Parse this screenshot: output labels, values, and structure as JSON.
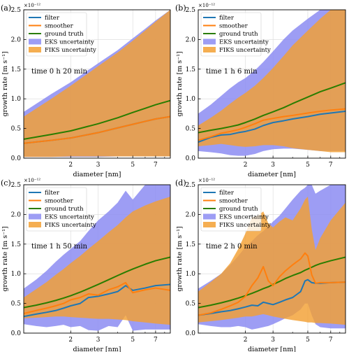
{
  "chart_data": [
    {
      "type": "line",
      "panel_label": "(a)",
      "annotation": "time 0 h 20 min",
      "xlabel": "diameter [nm]",
      "ylabel": "growth rate [m s⁻¹]",
      "y_scale_label": "×10⁻¹²",
      "x_scale": "log",
      "xlim": [
        1.0,
        8.7
      ],
      "ylim": [
        0.0,
        2.5
      ],
      "xticks": [
        2,
        3,
        5,
        7
      ],
      "yticks": [
        0.0,
        0.5,
        1.0,
        1.5,
        2.0,
        2.5
      ],
      "grid": true,
      "legend": {
        "placement": "top-left",
        "entries": [
          "filter",
          "smoother",
          "ground truth",
          "EKS uncertainty",
          "FIKS uncertainty"
        ]
      },
      "x": [
        1.0,
        1.5,
        2.0,
        3.0,
        4.0,
        5.0,
        6.0,
        7.0,
        8.7
      ],
      "series": [
        {
          "name": "filter",
          "color": "#1f77b4",
          "values": [
            0.25,
            0.3,
            0.34,
            0.43,
            0.51,
            0.57,
            0.62,
            0.66,
            0.7
          ]
        },
        {
          "name": "smoother",
          "color": "#ff7f0e",
          "values": [
            0.25,
            0.3,
            0.34,
            0.43,
            0.51,
            0.57,
            0.62,
            0.66,
            0.7
          ]
        },
        {
          "name": "ground truth",
          "color": "#2a7d00",
          "values": [
            0.32,
            0.4,
            0.46,
            0.58,
            0.68,
            0.77,
            0.84,
            0.9,
            0.97
          ]
        }
      ],
      "bands": [
        {
          "name": "EKS uncertainty",
          "color": "#8c8cf2",
          "x": [
            1.0,
            1.5,
            2.0,
            3.0,
            4.0,
            5.0,
            6.0,
            7.0,
            8.7
          ],
          "lower": [
            0.02,
            0.02,
            0.02,
            0.02,
            0.03,
            0.03,
            0.03,
            0.03,
            0.03
          ],
          "upper": [
            0.78,
            1.08,
            1.28,
            1.6,
            1.82,
            2.02,
            2.18,
            2.32,
            2.5
          ]
        },
        {
          "name": "FIKS uncertainty",
          "color": "#f3a033",
          "x": [
            1.0,
            1.5,
            2.0,
            3.0,
            4.0,
            5.0,
            6.0,
            7.0,
            8.7
          ],
          "lower": [
            0.02,
            0.02,
            0.03,
            0.03,
            0.03,
            0.03,
            0.03,
            0.03,
            0.03
          ],
          "upper": [
            0.7,
            1.0,
            1.22,
            1.55,
            1.78,
            1.98,
            2.15,
            2.3,
            2.5
          ]
        }
      ]
    },
    {
      "type": "line",
      "panel_label": "(b)",
      "annotation": "time 1 h 6 min",
      "xlabel": "diameter [nm]",
      "ylabel": "growth rate [m s⁻¹]",
      "y_scale_label": "×10⁻¹²",
      "x_scale": "log",
      "xlim": [
        1.0,
        8.7
      ],
      "ylim": [
        0.0,
        2.5
      ],
      "xticks": [
        2,
        3,
        5,
        7
      ],
      "yticks": [
        0.0,
        0.5,
        1.0,
        1.5,
        2.0,
        2.5
      ],
      "grid": true,
      "legend": {
        "placement": "top-left",
        "entries": [
          "filter",
          "smoother",
          "ground truth",
          "EKS uncertainty",
          "FIKS uncertainty"
        ]
      },
      "x": [
        1.0,
        1.2,
        1.4,
        1.6,
        1.8,
        2.0,
        2.3,
        2.6,
        3.0,
        3.5,
        4.0,
        5.0,
        6.0,
        7.0,
        8.7
      ],
      "series": [
        {
          "name": "filter",
          "color": "#1f77b4",
          "values": [
            0.27,
            0.35,
            0.39,
            0.4,
            0.43,
            0.45,
            0.49,
            0.55,
            0.6,
            0.63,
            0.66,
            0.7,
            0.74,
            0.76,
            0.79
          ]
        },
        {
          "name": "smoother",
          "color": "#ff7f0e",
          "values": [
            0.3,
            0.36,
            0.42,
            0.45,
            0.48,
            0.52,
            0.58,
            0.64,
            0.67,
            0.7,
            0.72,
            0.76,
            0.79,
            0.81,
            0.83
          ]
        },
        {
          "name": "ground truth",
          "color": "#2a7d00",
          "values": [
            0.43,
            0.47,
            0.5,
            0.53,
            0.56,
            0.6,
            0.66,
            0.72,
            0.78,
            0.85,
            0.92,
            1.03,
            1.12,
            1.18,
            1.27
          ]
        }
      ],
      "bands": [
        {
          "name": "EKS uncertainty",
          "color": "#8c8cf2",
          "x": [
            1.0,
            1.2,
            1.4,
            1.6,
            1.8,
            2.0,
            2.3,
            2.6,
            3.0,
            3.5,
            4.0,
            5.0,
            6.0,
            7.0,
            8.7
          ],
          "lower": [
            0.12,
            0.1,
            0.08,
            0.05,
            0.04,
            0.04,
            0.07,
            0.12,
            0.15,
            0.16,
            0.16,
            0.14,
            0.12,
            0.12,
            0.12
          ],
          "upper": [
            0.75,
            0.9,
            1.05,
            1.18,
            1.28,
            1.35,
            1.48,
            1.62,
            1.8,
            2.0,
            2.15,
            2.35,
            2.5,
            2.5,
            2.5
          ]
        },
        {
          "name": "FIKS uncertainty",
          "color": "#f3a033",
          "x": [
            1.0,
            1.2,
            1.4,
            1.6,
            1.8,
            2.0,
            2.3,
            2.6,
            3.0,
            3.5,
            4.0,
            5.0,
            6.0,
            7.0,
            8.7
          ],
          "lower": [
            0.2,
            0.22,
            0.24,
            0.22,
            0.2,
            0.19,
            0.2,
            0.22,
            0.22,
            0.2,
            0.17,
            0.14,
            0.12,
            0.1,
            0.1
          ],
          "upper": [
            0.55,
            0.68,
            0.8,
            0.92,
            1.02,
            1.1,
            1.22,
            1.35,
            1.52,
            1.72,
            1.9,
            2.15,
            2.35,
            2.5,
            2.5
          ]
        }
      ]
    },
    {
      "type": "line",
      "panel_label": "(c)",
      "annotation": "time 1 h 50 min",
      "xlabel": "diameter [nm]",
      "ylabel": "growth rate [m s⁻¹]",
      "y_scale_label": "×10⁻¹²",
      "x_scale": "log",
      "xlim": [
        1.0,
        8.7
      ],
      "ylim": [
        0.0,
        2.5
      ],
      "xticks": [
        2,
        3,
        5,
        7
      ],
      "yticks": [
        0.0,
        0.5,
        1.0,
        1.5,
        2.0,
        2.5
      ],
      "grid": true,
      "legend": {
        "placement": "top-left",
        "entries": [
          "filter",
          "smoother",
          "ground truth",
          "EKS uncertainty",
          "FIKS uncertainty"
        ]
      },
      "x": [
        1.0,
        1.2,
        1.4,
        1.6,
        1.8,
        2.0,
        2.3,
        2.6,
        3.0,
        3.5,
        4.0,
        4.5,
        5.0,
        6.0,
        7.0,
        8.7
      ],
      "series": [
        {
          "name": "filter",
          "color": "#1f77b4",
          "values": [
            0.28,
            0.32,
            0.35,
            0.38,
            0.42,
            0.46,
            0.5,
            0.6,
            0.62,
            0.66,
            0.7,
            0.8,
            0.72,
            0.76,
            0.8,
            0.82
          ]
        },
        {
          "name": "smoother",
          "color": "#ff7f0e",
          "values": [
            0.33,
            0.38,
            0.42,
            0.46,
            0.5,
            0.56,
            0.6,
            0.66,
            0.64,
            0.73,
            0.78,
            0.85,
            0.68,
            0.73,
            0.76,
            0.72
          ]
        },
        {
          "name": "ground truth",
          "color": "#2a7d00",
          "values": [
            0.43,
            0.47,
            0.51,
            0.55,
            0.59,
            0.63,
            0.69,
            0.75,
            0.82,
            0.9,
            0.97,
            1.03,
            1.08,
            1.16,
            1.22,
            1.28
          ]
        }
      ],
      "bands": [
        {
          "name": "EKS uncertainty",
          "color": "#8c8cf2",
          "x": [
            1.0,
            1.2,
            1.4,
            1.6,
            1.8,
            2.0,
            2.3,
            2.6,
            3.0,
            3.5,
            4.0,
            4.5,
            5.0,
            6.0,
            7.0,
            8.7
          ],
          "lower": [
            0.15,
            0.12,
            0.1,
            0.12,
            0.14,
            0.1,
            0.12,
            0.05,
            0.04,
            0.12,
            0.1,
            0.3,
            0.04,
            0.06,
            0.06,
            0.06
          ],
          "upper": [
            0.75,
            0.9,
            1.05,
            1.2,
            1.32,
            1.42,
            1.55,
            1.72,
            1.9,
            2.05,
            2.2,
            2.4,
            2.25,
            2.5,
            2.5,
            2.5
          ]
        },
        {
          "name": "FIKS uncertainty",
          "color": "#f3a033",
          "x": [
            1.0,
            1.2,
            1.4,
            1.6,
            1.8,
            2.0,
            2.3,
            2.6,
            3.0,
            3.5,
            4.0,
            4.5,
            5.0,
            6.0,
            7.0,
            8.7
          ],
          "lower": [
            0.25,
            0.26,
            0.27,
            0.28,
            0.28,
            0.27,
            0.26,
            0.25,
            0.24,
            0.24,
            0.23,
            0.22,
            0.2,
            0.18,
            0.16,
            0.14
          ],
          "upper": [
            0.6,
            0.74,
            0.86,
            0.98,
            1.08,
            1.18,
            1.3,
            1.42,
            1.55,
            1.7,
            1.82,
            1.95,
            2.05,
            2.15,
            2.22,
            2.3
          ]
        }
      ]
    },
    {
      "type": "line",
      "panel_label": "(d)",
      "annotation": "time 2 h 0 min",
      "xlabel": "diameter [nm]",
      "ylabel": "growth rate [m s⁻¹]",
      "y_scale_label": "×10⁻¹²",
      "x_scale": "log",
      "xlim": [
        1.0,
        8.7
      ],
      "ylim": [
        0.0,
        2.5
      ],
      "xticks": [
        2,
        3,
        5,
        7
      ],
      "yticks": [
        0.0,
        0.5,
        1.0,
        1.5,
        2.0,
        2.5
      ],
      "grid": true,
      "legend": {
        "placement": "top-left",
        "entries": [
          "filter",
          "smoother",
          "ground truth",
          "EKS uncertainty",
          "FIKS uncertainty"
        ]
      },
      "x": [
        1.0,
        1.2,
        1.4,
        1.6,
        1.8,
        2.0,
        2.2,
        2.4,
        2.6,
        2.8,
        3.0,
        3.3,
        3.6,
        4.0,
        4.5,
        4.8,
        5.0,
        5.3,
        5.6,
        6.0,
        7.0,
        8.7
      ],
      "series": [
        {
          "name": "filter",
          "color": "#1f77b4",
          "values": [
            0.3,
            0.33,
            0.36,
            0.38,
            0.41,
            0.44,
            0.47,
            0.46,
            0.52,
            0.5,
            0.48,
            0.52,
            0.56,
            0.6,
            0.7,
            0.88,
            0.9,
            0.85,
            0.84,
            0.84,
            0.85,
            0.86
          ]
        },
        {
          "name": "smoother",
          "color": "#ff7f0e",
          "values": [
            0.3,
            0.34,
            0.4,
            0.46,
            0.52,
            0.62,
            0.8,
            0.93,
            1.12,
            0.88,
            0.8,
            0.95,
            1.05,
            1.15,
            1.25,
            1.35,
            1.3,
            0.98,
            0.84,
            0.85,
            0.85,
            0.86
          ]
        },
        {
          "name": "ground truth",
          "color": "#2a7d00",
          "values": [
            0.43,
            0.47,
            0.51,
            0.55,
            0.59,
            0.63,
            0.67,
            0.71,
            0.75,
            0.78,
            0.82,
            0.87,
            0.92,
            0.97,
            1.02,
            1.06,
            1.08,
            1.11,
            1.14,
            1.17,
            1.22,
            1.28
          ]
        }
      ],
      "bands": [
        {
          "name": "EKS uncertainty",
          "color": "#8c8cf2",
          "x": [
            1.0,
            1.2,
            1.4,
            1.6,
            1.8,
            2.0,
            2.2,
            2.4,
            2.6,
            2.8,
            3.0,
            3.3,
            3.6,
            4.0,
            4.5,
            4.8,
            5.0,
            5.3,
            5.6,
            6.0,
            7.0,
            8.7
          ],
          "lower": [
            0.15,
            0.12,
            0.1,
            0.1,
            0.12,
            0.1,
            0.06,
            0.08,
            0.1,
            0.12,
            0.15,
            0.2,
            0.25,
            0.3,
            0.4,
            0.5,
            0.5,
            0.3,
            0.15,
            0.1,
            0.08,
            0.08
          ],
          "upper": [
            0.75,
            0.88,
            1.0,
            1.15,
            1.3,
            1.45,
            1.55,
            1.65,
            1.72,
            1.8,
            1.88,
            1.98,
            2.1,
            2.25,
            2.4,
            2.45,
            2.5,
            2.5,
            2.35,
            2.4,
            2.5,
            2.5
          ]
        },
        {
          "name": "FIKS uncertainty",
          "color": "#f3a033",
          "x": [
            1.0,
            1.2,
            1.4,
            1.6,
            1.8,
            2.0,
            2.2,
            2.4,
            2.6,
            2.8,
            3.0,
            3.3,
            3.6,
            4.0,
            4.5,
            4.8,
            5.0,
            5.3,
            5.6,
            6.0,
            7.0,
            8.7
          ],
          "lower": [
            0.18,
            0.2,
            0.22,
            0.24,
            0.26,
            0.28,
            0.28,
            0.3,
            0.32,
            0.3,
            0.28,
            0.26,
            0.24,
            0.22,
            0.2,
            0.19,
            0.18,
            0.18,
            0.17,
            0.17,
            0.16,
            0.14
          ],
          "upper": [
            0.7,
            0.86,
            1.0,
            1.18,
            1.42,
            1.68,
            1.95,
            1.98,
            2.05,
            1.85,
            1.78,
            1.88,
            1.95,
            1.9,
            2.1,
            2.25,
            2.3,
            1.75,
            1.4,
            1.6,
            1.9,
            2.2
          ]
        }
      ]
    }
  ]
}
